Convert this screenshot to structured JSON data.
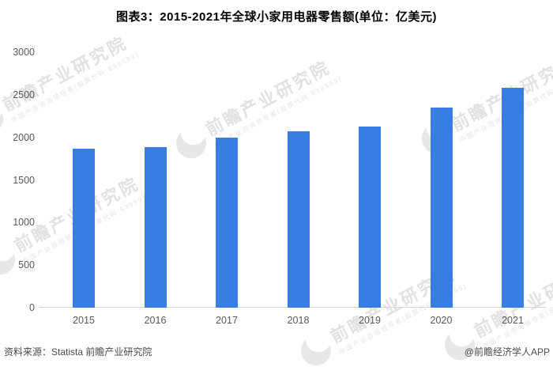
{
  "title": "图表3：2015-2021年全球小家用电器零售额(单位：亿美元)",
  "chart_data": {
    "type": "bar",
    "title": "2015-2021年全球小家用电器零售额",
    "unit": "亿美元",
    "categories": [
      "2015",
      "2016",
      "2017",
      "2018",
      "2019",
      "2020",
      "2021"
    ],
    "values": [
      1870,
      1890,
      2000,
      2070,
      2125,
      2350,
      2580
    ],
    "xlabel": "",
    "ylabel": "",
    "ylim": [
      0,
      3000
    ],
    "yticks": [
      0,
      500,
      1000,
      1500,
      2000,
      2500,
      3000
    ],
    "grid": false,
    "legend": "none",
    "bar_color": "#377de2"
  },
  "footer": {
    "source": "资料来源：Statista 前瞻产业研究院",
    "credit": "@前瞻经济学人APP"
  },
  "watermark": {
    "text": "前瞻产业研究院",
    "subtext": "中国产业咨询领导者(股票代码:839599)"
  },
  "colors": {
    "bar": "#377de2",
    "axis_text": "#595959",
    "axis_line": "#d6d6d6",
    "title_text": "#000000",
    "footer_text": "#4a4a4a",
    "watermark": "#e1e1e1"
  }
}
